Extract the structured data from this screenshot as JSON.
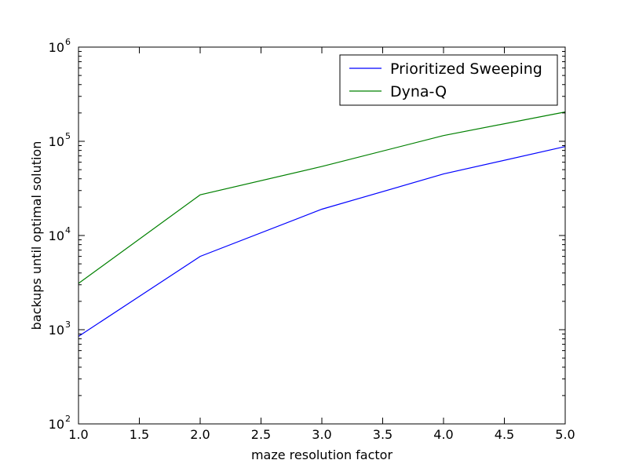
{
  "chart_data": {
    "type": "line",
    "xlabel": "maze resolution factor",
    "ylabel": "backups until optimal solution",
    "xlim": [
      1.0,
      5.0
    ],
    "ylim": [
      100,
      1000000
    ],
    "yscale": "log",
    "xticks": [
      "1.0",
      "1.5",
      "2.0",
      "2.5",
      "3.0",
      "3.5",
      "4.0",
      "4.5",
      "5.0"
    ],
    "yticks": [
      {
        "base": "10",
        "exp": "2",
        "value": 100
      },
      {
        "base": "10",
        "exp": "3",
        "value": 1000
      },
      {
        "base": "10",
        "exp": "4",
        "value": 10000
      },
      {
        "base": "10",
        "exp": "5",
        "value": 100000
      },
      {
        "base": "10",
        "exp": "6",
        "value": 1000000
      }
    ],
    "x": [
      1,
      2,
      3,
      4,
      5
    ],
    "series": [
      {
        "name": "Prioritized Sweeping",
        "color": "#0000ff",
        "values": [
          850,
          6000,
          19000,
          45000,
          88000
        ]
      },
      {
        "name": "Dyna-Q",
        "color": "#008000",
        "values": [
          3100,
          27000,
          54000,
          115000,
          205000
        ]
      }
    ],
    "legend": "top-right",
    "grid": false
  }
}
